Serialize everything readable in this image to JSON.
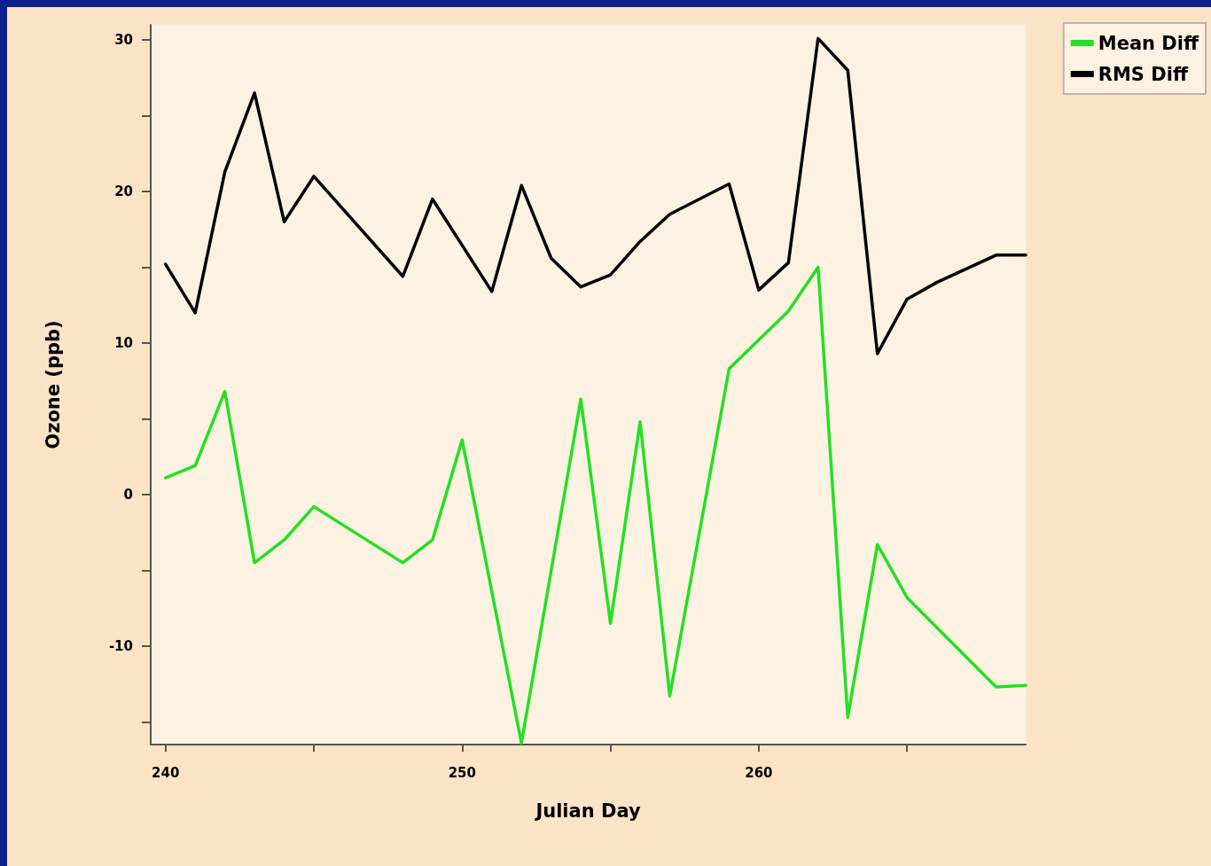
{
  "chart_data": {
    "type": "line",
    "xlabel": "Julian Day",
    "ylabel": "Ozone (ppb)",
    "series": [
      {
        "name": "Mean Diff",
        "color": "#22e022",
        "x": [
          240,
          241,
          242,
          243,
          244,
          245,
          248,
          249,
          250,
          252,
          254,
          255,
          256,
          257,
          259,
          261,
          262,
          263,
          264,
          265,
          268,
          269
        ],
        "values": [
          1.1,
          1.9,
          6.8,
          -4.5,
          -3.0,
          -0.8,
          -4.5,
          -3.0,
          3.6,
          -16.4,
          6.3,
          -8.5,
          4.8,
          -13.3,
          8.3,
          12.1,
          15.0,
          -14.7,
          -3.3,
          -6.8,
          -12.7,
          -12.6
        ]
      },
      {
        "name": "RMS Diff",
        "color": "#000000",
        "x": [
          240,
          241,
          242,
          243,
          244,
          245,
          248,
          249,
          251,
          252,
          253,
          254,
          255,
          256,
          257,
          259,
          260,
          261,
          262,
          263,
          264,
          265,
          266,
          268,
          269
        ],
        "values": [
          15.2,
          12.0,
          21.3,
          26.5,
          18.0,
          21.0,
          14.4,
          19.5,
          13.4,
          20.4,
          15.6,
          13.7,
          14.5,
          16.7,
          18.5,
          20.5,
          13.5,
          15.3,
          30.1,
          28.0,
          9.3,
          12.9,
          14.0,
          15.8,
          15.8
        ]
      }
    ],
    "xlim": [
      239.5,
      269
    ],
    "xticks": [
      240,
      {
        "value": 245,
        "label": null
      },
      250,
      {
        "value": 255,
        "label": null
      },
      260,
      {
        "value": 265,
        "label": null
      }
    ],
    "ylim": [
      -16.5,
      31
    ],
    "yticks": [
      {
        "value": -15,
        "label": null
      },
      -10,
      {
        "value": -5,
        "label": null
      },
      0,
      {
        "value": 5,
        "label": null
      },
      10,
      {
        "value": 15,
        "label": null
      },
      20,
      {
        "value": 25,
        "label": null
      },
      30
    ],
    "grid": false,
    "legend": "top right",
    "marker": "none",
    "line_style": "solid"
  }
}
